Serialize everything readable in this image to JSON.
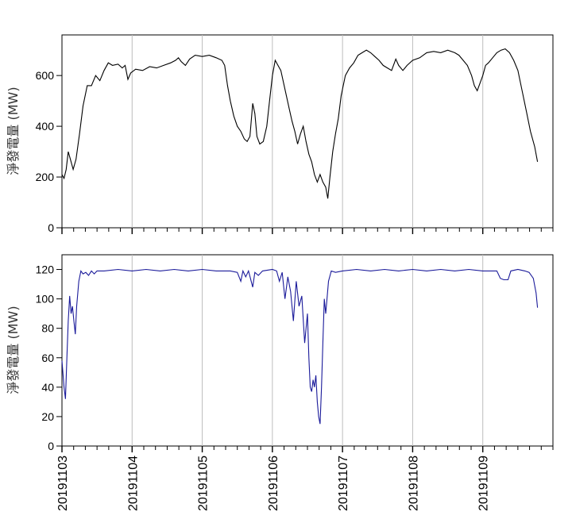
{
  "chart_data": [
    {
      "type": "line",
      "ylabel": "淨發電量 (MW)",
      "xlim": [
        0,
        7
      ],
      "ylim": [
        0,
        760
      ],
      "yticks": [
        0,
        200,
        400,
        600
      ],
      "grid": "vertical",
      "series": [
        {
          "color": "#000000",
          "points": [
            [
              0.0,
              210
            ],
            [
              0.03,
              195
            ],
            [
              0.06,
              230
            ],
            [
              0.09,
              300
            ],
            [
              0.12,
              270
            ],
            [
              0.16,
              230
            ],
            [
              0.2,
              270
            ],
            [
              0.25,
              370
            ],
            [
              0.3,
              480
            ],
            [
              0.36,
              560
            ],
            [
              0.42,
              560
            ],
            [
              0.48,
              600
            ],
            [
              0.54,
              580
            ],
            [
              0.6,
              620
            ],
            [
              0.66,
              650
            ],
            [
              0.72,
              640
            ],
            [
              0.8,
              645
            ],
            [
              0.86,
              630
            ],
            [
              0.9,
              640
            ],
            [
              0.94,
              585
            ],
            [
              0.98,
              610
            ],
            [
              1.05,
              625
            ],
            [
              1.15,
              620
            ],
            [
              1.25,
              635
            ],
            [
              1.35,
              630
            ],
            [
              1.45,
              640
            ],
            [
              1.55,
              650
            ],
            [
              1.62,
              660
            ],
            [
              1.66,
              670
            ],
            [
              1.7,
              655
            ],
            [
              1.76,
              640
            ],
            [
              1.82,
              665
            ],
            [
              1.9,
              680
            ],
            [
              2.0,
              675
            ],
            [
              2.1,
              680
            ],
            [
              2.2,
              670
            ],
            [
              2.28,
              660
            ],
            [
              2.32,
              640
            ],
            [
              2.36,
              560
            ],
            [
              2.4,
              500
            ],
            [
              2.45,
              440
            ],
            [
              2.5,
              400
            ],
            [
              2.55,
              380
            ],
            [
              2.6,
              350
            ],
            [
              2.64,
              340
            ],
            [
              2.68,
              360
            ],
            [
              2.72,
              490
            ],
            [
              2.75,
              450
            ],
            [
              2.78,
              360
            ],
            [
              2.82,
              330
            ],
            [
              2.87,
              340
            ],
            [
              2.92,
              400
            ],
            [
              2.96,
              500
            ],
            [
              3.0,
              600
            ],
            [
              3.04,
              660
            ],
            [
              3.08,
              640
            ],
            [
              3.12,
              620
            ],
            [
              3.16,
              570
            ],
            [
              3.2,
              520
            ],
            [
              3.24,
              470
            ],
            [
              3.28,
              420
            ],
            [
              3.32,
              380
            ],
            [
              3.36,
              330
            ],
            [
              3.4,
              370
            ],
            [
              3.44,
              400
            ],
            [
              3.48,
              340
            ],
            [
              3.52,
              290
            ],
            [
              3.56,
              260
            ],
            [
              3.6,
              210
            ],
            [
              3.64,
              180
            ],
            [
              3.68,
              210
            ],
            [
              3.72,
              180
            ],
            [
              3.76,
              160
            ],
            [
              3.79,
              115
            ],
            [
              3.82,
              200
            ],
            [
              3.86,
              300
            ],
            [
              3.9,
              370
            ],
            [
              3.94,
              430
            ],
            [
              3.98,
              520
            ],
            [
              4.04,
              600
            ],
            [
              4.1,
              630
            ],
            [
              4.16,
              650
            ],
            [
              4.22,
              680
            ],
            [
              4.28,
              690
            ],
            [
              4.34,
              700
            ],
            [
              4.4,
              690
            ],
            [
              4.46,
              675
            ],
            [
              4.52,
              660
            ],
            [
              4.58,
              640
            ],
            [
              4.64,
              630
            ],
            [
              4.7,
              620
            ],
            [
              4.76,
              665
            ],
            [
              4.8,
              640
            ],
            [
              4.86,
              620
            ],
            [
              4.92,
              640
            ],
            [
              5.0,
              660
            ],
            [
              5.1,
              670
            ],
            [
              5.2,
              690
            ],
            [
              5.3,
              695
            ],
            [
              5.4,
              690
            ],
            [
              5.5,
              700
            ],
            [
              5.6,
              690
            ],
            [
              5.66,
              680
            ],
            [
              5.72,
              660
            ],
            [
              5.78,
              640
            ],
            [
              5.84,
              600
            ],
            [
              5.88,
              560
            ],
            [
              5.92,
              540
            ],
            [
              5.96,
              570
            ],
            [
              6.0,
              600
            ],
            [
              6.04,
              640
            ],
            [
              6.08,
              650
            ],
            [
              6.14,
              670
            ],
            [
              6.2,
              690
            ],
            [
              6.26,
              700
            ],
            [
              6.32,
              705
            ],
            [
              6.38,
              690
            ],
            [
              6.44,
              660
            ],
            [
              6.5,
              620
            ],
            [
              6.56,
              540
            ],
            [
              6.62,
              460
            ],
            [
              6.68,
              380
            ],
            [
              6.74,
              320
            ],
            [
              6.78,
              260
            ]
          ]
        }
      ]
    },
    {
      "type": "line",
      "ylabel": "淨發電量 (MW)",
      "xlim": [
        0,
        7
      ],
      "ylim": [
        0,
        130
      ],
      "yticks": [
        0,
        20,
        40,
        60,
        80,
        100,
        120
      ],
      "grid": "vertical",
      "series": [
        {
          "color": "#1a1a9a",
          "points": [
            [
              0.0,
              58
            ],
            [
              0.03,
              40
            ],
            [
              0.05,
              32
            ],
            [
              0.07,
              60
            ],
            [
              0.09,
              85
            ],
            [
              0.11,
              102
            ],
            [
              0.13,
              90
            ],
            [
              0.15,
              95
            ],
            [
              0.17,
              85
            ],
            [
              0.19,
              76
            ],
            [
              0.21,
              95
            ],
            [
              0.24,
              112
            ],
            [
              0.27,
              119
            ],
            [
              0.3,
              117
            ],
            [
              0.34,
              118
            ],
            [
              0.38,
              116
            ],
            [
              0.42,
              119
            ],
            [
              0.46,
              117
            ],
            [
              0.5,
              119
            ],
            [
              0.6,
              119
            ],
            [
              0.8,
              120
            ],
            [
              1.0,
              119
            ],
            [
              1.2,
              120
            ],
            [
              1.4,
              119
            ],
            [
              1.6,
              120
            ],
            [
              1.8,
              119
            ],
            [
              2.0,
              120
            ],
            [
              2.2,
              119
            ],
            [
              2.4,
              119
            ],
            [
              2.5,
              118
            ],
            [
              2.55,
              112
            ],
            [
              2.58,
              119
            ],
            [
              2.62,
              115
            ],
            [
              2.66,
              119
            ],
            [
              2.72,
              108
            ],
            [
              2.75,
              118
            ],
            [
              2.8,
              116
            ],
            [
              2.86,
              119
            ],
            [
              3.0,
              120
            ],
            [
              3.06,
              119
            ],
            [
              3.1,
              112
            ],
            [
              3.14,
              118
            ],
            [
              3.18,
              100
            ],
            [
              3.22,
              115
            ],
            [
              3.26,
              105
            ],
            [
              3.3,
              85
            ],
            [
              3.34,
              112
            ],
            [
              3.38,
              95
            ],
            [
              3.42,
              102
            ],
            [
              3.46,
              70
            ],
            [
              3.5,
              90
            ],
            [
              3.52,
              60
            ],
            [
              3.54,
              40
            ],
            [
              3.56,
              37
            ],
            [
              3.58,
              45
            ],
            [
              3.6,
              40
            ],
            [
              3.62,
              48
            ],
            [
              3.64,
              30
            ],
            [
              3.66,
              20
            ],
            [
              3.68,
              15
            ],
            [
              3.7,
              40
            ],
            [
              3.72,
              70
            ],
            [
              3.74,
              100
            ],
            [
              3.76,
              90
            ],
            [
              3.8,
              112
            ],
            [
              3.84,
              119
            ],
            [
              3.9,
              118
            ],
            [
              4.0,
              119
            ],
            [
              4.2,
              120
            ],
            [
              4.4,
              119
            ],
            [
              4.6,
              120
            ],
            [
              4.8,
              119
            ],
            [
              5.0,
              120
            ],
            [
              5.2,
              119
            ],
            [
              5.4,
              120
            ],
            [
              5.6,
              119
            ],
            [
              5.8,
              120
            ],
            [
              6.0,
              119
            ],
            [
              6.2,
              119
            ],
            [
              6.25,
              114
            ],
            [
              6.3,
              113
            ],
            [
              6.36,
              113
            ],
            [
              6.4,
              119
            ],
            [
              6.5,
              120
            ],
            [
              6.6,
              119
            ],
            [
              6.66,
              118
            ],
            [
              6.72,
              114
            ],
            [
              6.76,
              104
            ],
            [
              6.78,
              94
            ]
          ]
        }
      ]
    }
  ],
  "x_tick_labels": [
    "20191103",
    "20191104",
    "20191105",
    "20191106",
    "20191107",
    "20191108",
    "20191109"
  ],
  "x_minor_ticks_per_day": 6
}
